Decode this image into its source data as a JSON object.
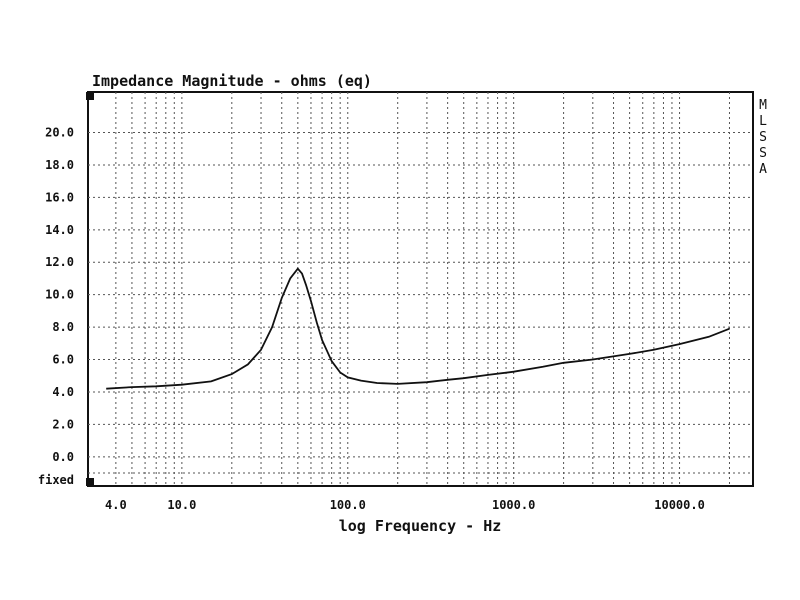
{
  "chart_data": {
    "type": "line",
    "title": "Impedance Magnitude - ohms (eq)",
    "xlabel": "log Frequency - Hz",
    "ylabel": "",
    "xscale": "log",
    "xlim": [
      3.3,
      21000
    ],
    "ylim": [
      -1.8,
      22.5
    ],
    "grid": true,
    "x_ticks": [
      {
        "value": 4,
        "label": "4.0"
      },
      {
        "value": 10,
        "label": "10.0"
      },
      {
        "value": 100,
        "label": "100.0"
      },
      {
        "value": 1000,
        "label": "1000.0"
      },
      {
        "value": 10000,
        "label": "10000.0"
      }
    ],
    "y_ticks": [
      {
        "value": 20,
        "label": "20.0"
      },
      {
        "value": 18,
        "label": "18.0"
      },
      {
        "value": 16,
        "label": "16.0"
      },
      {
        "value": 14,
        "label": "14.0"
      },
      {
        "value": 12,
        "label": "12.0"
      },
      {
        "value": 10,
        "label": "10.0"
      },
      {
        "value": 8,
        "label": "8.0"
      },
      {
        "value": 6,
        "label": "6.0"
      },
      {
        "value": 4,
        "label": "4.0"
      },
      {
        "value": 2,
        "label": "2.0"
      },
      {
        "value": 0,
        "label": "0.0"
      }
    ],
    "y_bottom_label": "fixed",
    "side_label": [
      "M",
      "L",
      "S",
      "S",
      "A"
    ],
    "series": [
      {
        "x": [
          3.5,
          5,
          7,
          10,
          15,
          20,
          25,
          30,
          35,
          40,
          45,
          50,
          53,
          56,
          60,
          65,
          70,
          80,
          90,
          100,
          120,
          150,
          200,
          300,
          400,
          500,
          700,
          1000,
          1500,
          2000,
          3000,
          5000,
          7000,
          10000,
          15000,
          20000
        ],
        "y": [
          4.2,
          4.3,
          4.35,
          4.45,
          4.65,
          5.1,
          5.7,
          6.6,
          8.0,
          9.8,
          11.0,
          11.6,
          11.3,
          10.6,
          9.6,
          8.3,
          7.2,
          5.9,
          5.2,
          4.9,
          4.7,
          4.55,
          4.5,
          4.6,
          4.75,
          4.85,
          5.05,
          5.25,
          5.55,
          5.8,
          6.0,
          6.35,
          6.6,
          6.95,
          7.4,
          7.9
        ]
      }
    ]
  }
}
